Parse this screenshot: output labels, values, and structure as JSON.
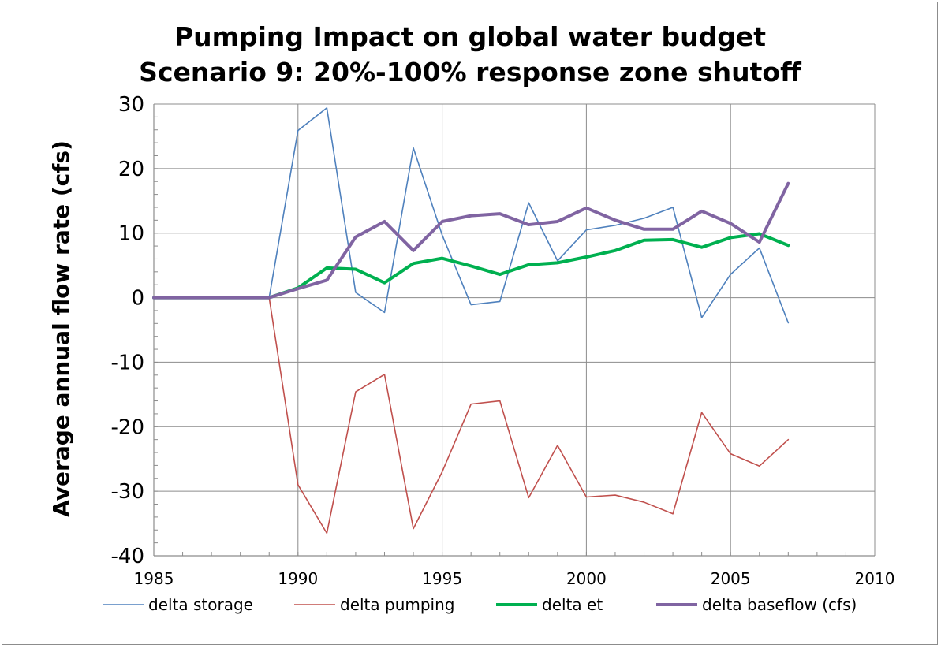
{
  "chart_data": {
    "type": "line",
    "title": "Pumping Impact on global water budget",
    "subtitle": "Scenario 9: 20%-100% response zone shutoff",
    "xlabel": "",
    "ylabel": "Average annual flow rate (cfs)",
    "xlim": [
      1985,
      2010
    ],
    "ylim": [
      -40,
      30
    ],
    "xticks": [
      1985,
      1990,
      1995,
      2000,
      2005,
      2010
    ],
    "yticks": [
      30,
      20,
      10,
      0,
      -10,
      -20,
      -30,
      -40
    ],
    "grid": "major",
    "legend": "bottom",
    "x": [
      1985,
      1986,
      1987,
      1988,
      1989,
      1990,
      1991,
      1992,
      1993,
      1994,
      1995,
      1996,
      1997,
      1998,
      1999,
      2000,
      2001,
      2002,
      2003,
      2004,
      2005,
      2006,
      2007
    ],
    "series": [
      {
        "name": "delta storage",
        "color": "#4f81bd",
        "width": 1.6,
        "values": [
          0,
          0,
          0,
          0,
          0,
          25.9,
          29.4,
          0.8,
          -2.3,
          23.2,
          9.7,
          -1.1,
          -0.6,
          14.7,
          5.7,
          10.5,
          11.2,
          12.3,
          14.0,
          -3.1,
          3.6,
          7.7,
          -3.9
        ]
      },
      {
        "name": "delta pumping",
        "color": "#c0504d",
        "width": 1.6,
        "values": [
          0,
          0,
          0,
          0,
          0,
          -29.0,
          -36.5,
          -14.6,
          -11.9,
          -35.8,
          -27.0,
          -16.5,
          -16.0,
          -31.0,
          -22.9,
          -30.9,
          -30.6,
          -31.7,
          -33.5,
          -17.8,
          -24.2,
          -26.1,
          -22.0
        ]
      },
      {
        "name": "delta et",
        "color": "#00b050",
        "width": 4,
        "values": [
          0,
          0,
          0,
          0,
          0,
          1.5,
          4.6,
          4.4,
          2.3,
          5.3,
          6.1,
          4.9,
          3.6,
          5.1,
          5.4,
          6.3,
          7.3,
          8.9,
          9.0,
          7.8,
          9.3,
          9.9,
          8.1
        ]
      },
      {
        "name": "delta baseflow (cfs)",
        "color": "#8064a2",
        "width": 4,
        "values": [
          0,
          0,
          0,
          0,
          0,
          1.4,
          2.7,
          9.4,
          11.8,
          7.3,
          11.8,
          12.7,
          13.0,
          11.3,
          11.8,
          13.9,
          12.0,
          10.6,
          10.6,
          13.4,
          11.5,
          8.6,
          17.7
        ]
      }
    ]
  }
}
